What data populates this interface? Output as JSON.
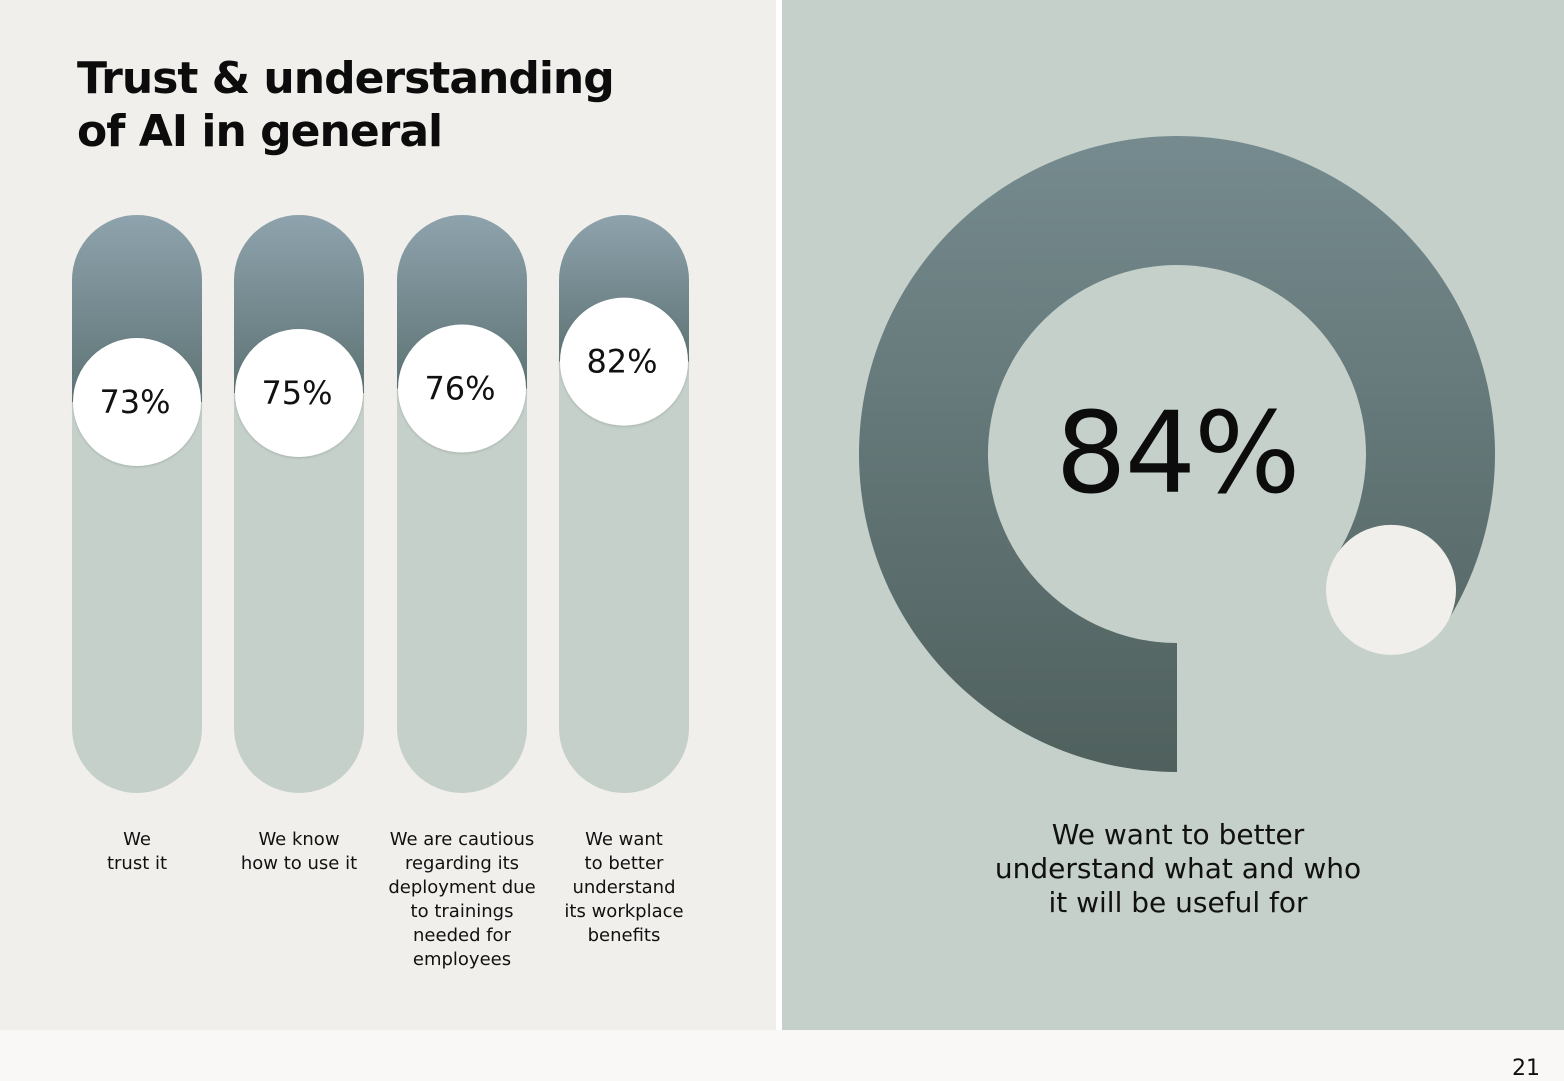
{
  "page": {
    "title": "Trust & understanding\nof AI in general",
    "page_number": "21"
  },
  "colors": {
    "left_background": "#f1efeb",
    "right_background": "#c4d0c9",
    "pill_track": "#c4d0c9",
    "gradient_top_light": "#8ea3ad",
    "gradient_top_dark": "#5e7374",
    "donut_gradient_top": "#768b8f",
    "donut_gradient_bottom": "#4f605d",
    "knob": "#ffffff",
    "donut_end_dot": "#f1efeb"
  },
  "chart_data": [
    {
      "type": "bar",
      "title": "",
      "categories": [
        "We\ntrust it",
        "We know\nhow to use it",
        "We are cautious\nregarding its\ndeployment due\nto trainings\nneeded for\nemployees",
        "We want\nto better\nunderstand\nits workplace\nbenefits"
      ],
      "values": [
        73,
        75,
        76,
        82
      ],
      "value_labels": [
        "73%",
        "75%",
        "76%",
        "82%"
      ],
      "ylim": [
        0,
        100
      ],
      "unit": "%",
      "grid": false,
      "legend": "none"
    },
    {
      "type": "pie",
      "style": "donut",
      "value": 84,
      "value_label": "84%",
      "caption": "We want to better\nunderstand what and who\nit will be useful for",
      "legend": "none"
    }
  ]
}
